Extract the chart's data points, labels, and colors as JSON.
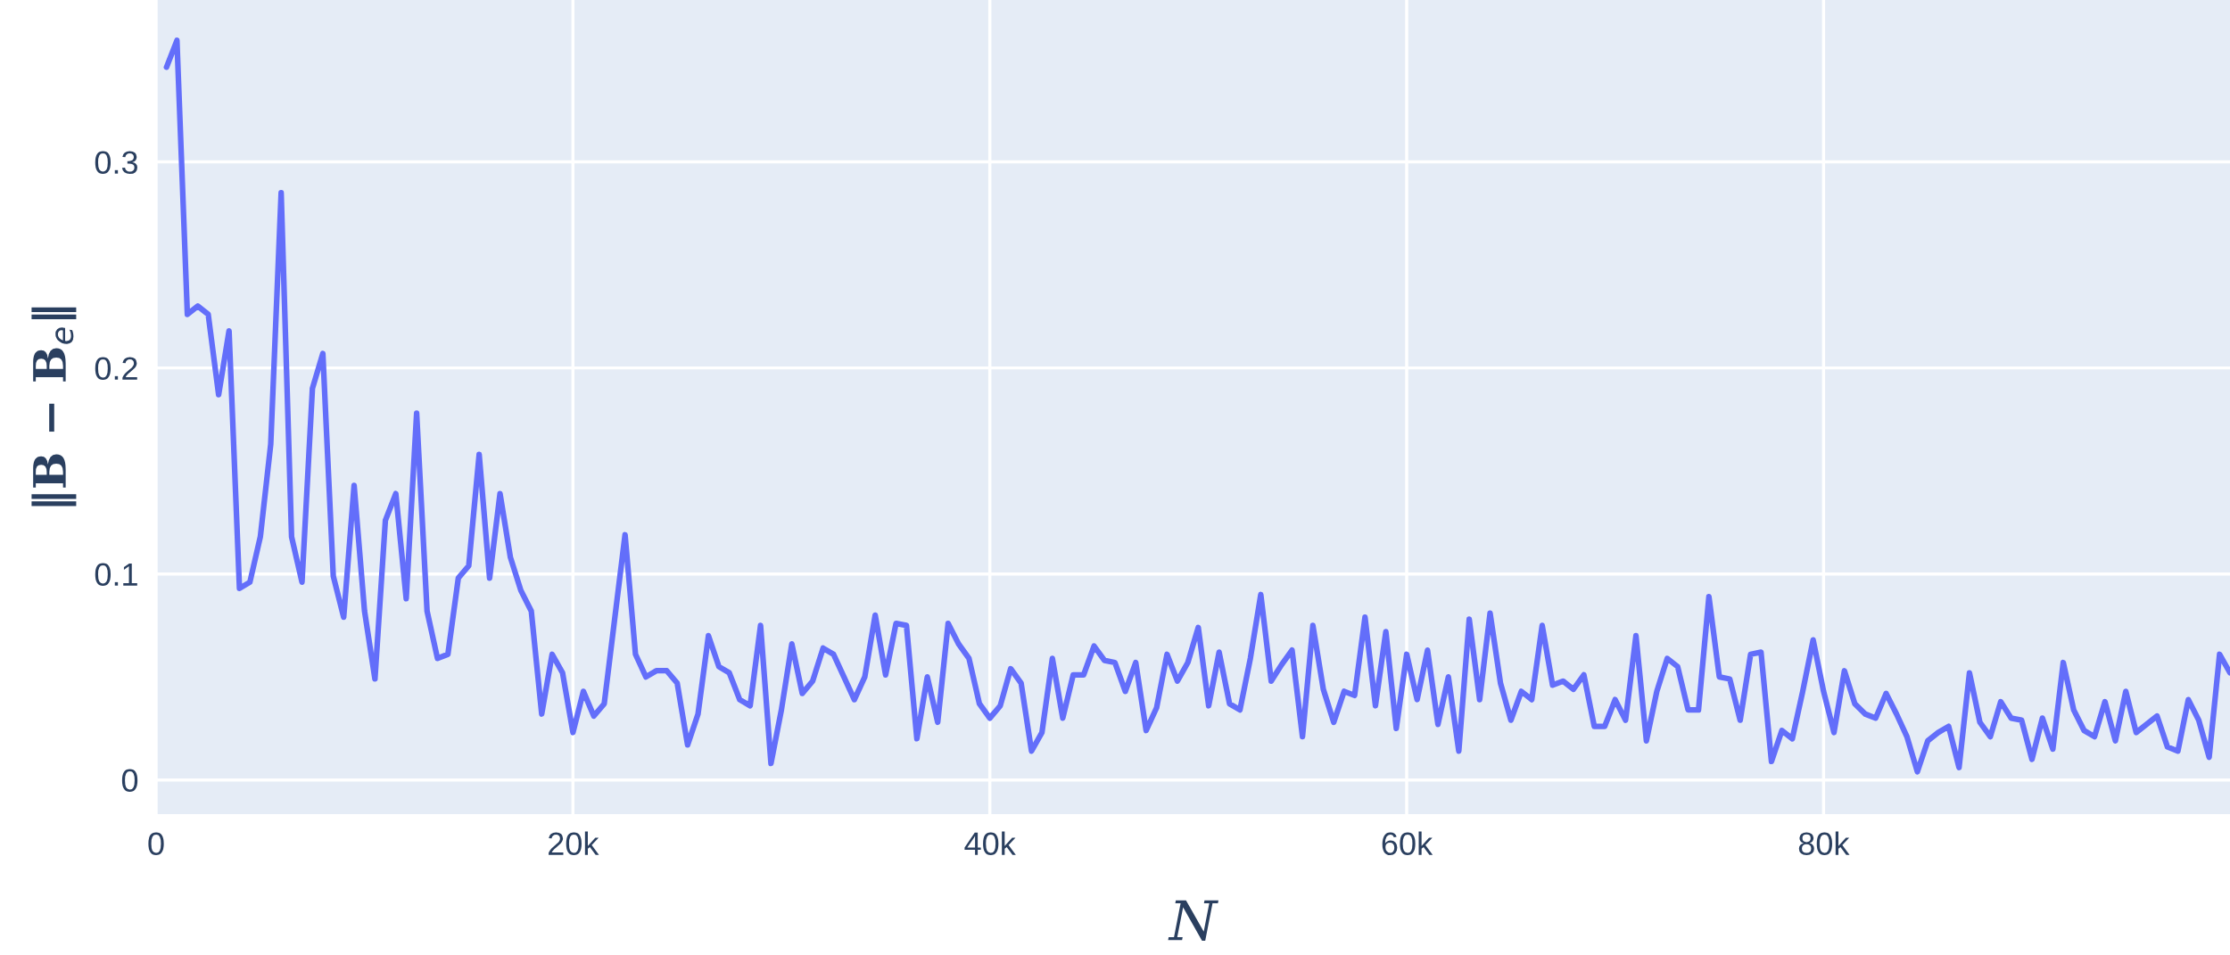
{
  "chart_data": {
    "type": "line",
    "xlabel": "N",
    "ylabel": "‖B − B$_{e}$‖",
    "x": [
      500,
      1000,
      1500,
      2000,
      2500,
      3000,
      3500,
      4000,
      4500,
      5000,
      5500,
      6000,
      6500,
      7000,
      7500,
      8000,
      8500,
      9000,
      9500,
      10000,
      10500,
      11000,
      11500,
      12000,
      12500,
      13000,
      13500,
      14000,
      14500,
      15000,
      15500,
      16000,
      16500,
      17000,
      17500,
      18000,
      18500,
      19000,
      19500,
      20000,
      20500,
      21000,
      21500,
      22000,
      22500,
      23000,
      23500,
      24000,
      24500,
      25000,
      25500,
      26000,
      26500,
      27000,
      27500,
      28000,
      28500,
      29000,
      29500,
      30000,
      30500,
      31000,
      31500,
      32000,
      32500,
      33000,
      33500,
      34000,
      34500,
      35000,
      35500,
      36000,
      36500,
      37000,
      37500,
      38000,
      38500,
      39000,
      39500,
      40000,
      40500,
      41000,
      41500,
      42000,
      42500,
      43000,
      43500,
      44000,
      44500,
      45000,
      45500,
      46000,
      46500,
      47000,
      47500,
      48000,
      48500,
      49000,
      49500,
      50000,
      50500,
      51000,
      51500,
      52000,
      52500,
      53000,
      53500,
      54000,
      54500,
      55000,
      55500,
      56000,
      56500,
      57000,
      57500,
      58000,
      58500,
      59000,
      59500,
      60000,
      60500,
      61000,
      61500,
      62000,
      62500,
      63000,
      63500,
      64000,
      64500,
      65000,
      65500,
      66000,
      66500,
      67000,
      67500,
      68000,
      68500,
      69000,
      69500,
      70000,
      70500,
      71000,
      71500,
      72000,
      72500,
      73000,
      73500,
      74000,
      74500,
      75000,
      75500,
      76000,
      76500,
      77000,
      77500,
      78000,
      78500,
      79000,
      79500,
      80000,
      80500,
      81000,
      81500,
      82000,
      82500,
      83000,
      83500,
      84000,
      84500,
      85000,
      85500,
      86000,
      86500,
      87000,
      87500,
      88000,
      88500,
      89000,
      89500,
      90000,
      90500,
      91000,
      91500,
      92000,
      92500,
      93000,
      93500,
      94000,
      94500,
      95000,
      95500,
      96000,
      96500,
      97000,
      97500,
      98000,
      98500,
      99000,
      99500
    ],
    "series": [
      {
        "color": "#636efa",
        "values": [
          0.346,
          0.359,
          0.226,
          0.23,
          0.226,
          0.187,
          0.218,
          0.093,
          0.096,
          0.118,
          0.163,
          0.285,
          0.118,
          0.096,
          0.19,
          0.207,
          0.099,
          0.079,
          0.143,
          0.082,
          0.049,
          0.126,
          0.139,
          0.088,
          0.178,
          0.082,
          0.059,
          0.061,
          0.098,
          0.104,
          0.158,
          0.098,
          0.139,
          0.108,
          0.092,
          0.082,
          0.032,
          0.061,
          0.052,
          0.023,
          0.043,
          0.031,
          0.037,
          0.078,
          0.119,
          0.061,
          0.05,
          0.053,
          0.053,
          0.047,
          0.017,
          0.032,
          0.07,
          0.055,
          0.052,
          0.039,
          0.036,
          0.075,
          0.008,
          0.034,
          0.066,
          0.042,
          0.048,
          0.064,
          0.061,
          0.05,
          0.039,
          0.05,
          0.08,
          0.051,
          0.076,
          0.075,
          0.02,
          0.05,
          0.028,
          0.076,
          0.066,
          0.059,
          0.037,
          0.03,
          0.036,
          0.054,
          0.047,
          0.014,
          0.023,
          0.059,
          0.03,
          0.051,
          0.051,
          0.065,
          0.058,
          0.057,
          0.043,
          0.057,
          0.024,
          0.035,
          0.061,
          0.048,
          0.057,
          0.074,
          0.036,
          0.062,
          0.037,
          0.034,
          0.059,
          0.09,
          0.048,
          0.056,
          0.063,
          0.021,
          0.075,
          0.044,
          0.028,
          0.043,
          0.041,
          0.079,
          0.036,
          0.072,
          0.025,
          0.061,
          0.039,
          0.063,
          0.027,
          0.05,
          0.014,
          0.078,
          0.039,
          0.081,
          0.047,
          0.029,
          0.043,
          0.039,
          0.075,
          0.046,
          0.048,
          0.044,
          0.051,
          0.026,
          0.026,
          0.039,
          0.029,
          0.07,
          0.019,
          0.043,
          0.059,
          0.055,
          0.034,
          0.034,
          0.089,
          0.05,
          0.049,
          0.029,
          0.061,
          0.062,
          0.009,
          0.024,
          0.02,
          0.043,
          0.068,
          0.043,
          0.023,
          0.053,
          0.037,
          0.032,
          0.03,
          0.042,
          0.032,
          0.021,
          0.004,
          0.019,
          0.023,
          0.026,
          0.006,
          0.052,
          0.028,
          0.021,
          0.038,
          0.03,
          0.029,
          0.01,
          0.03,
          0.015,
          0.057,
          0.034,
          0.024,
          0.021,
          0.038,
          0.019,
          0.043,
          0.023,
          0.027,
          0.031,
          0.016,
          0.014,
          0.039,
          0.029,
          0.011,
          0.061,
          0.052
        ]
      }
    ],
    "xlim": [
      0,
      99500
    ],
    "ylim": [
      -0.0166,
      0.3786
    ],
    "xticks": [
      0,
      {
        "value": 20000,
        "label": "20k"
      },
      {
        "value": 40000,
        "label": "40k"
      },
      {
        "value": 60000,
        "label": "60k"
      },
      {
        "value": 80000,
        "label": "80k"
      }
    ],
    "yticks": [
      0,
      0.1,
      0.2,
      0.3
    ],
    "grid": true,
    "marker": "none",
    "line_style": "solid"
  }
}
